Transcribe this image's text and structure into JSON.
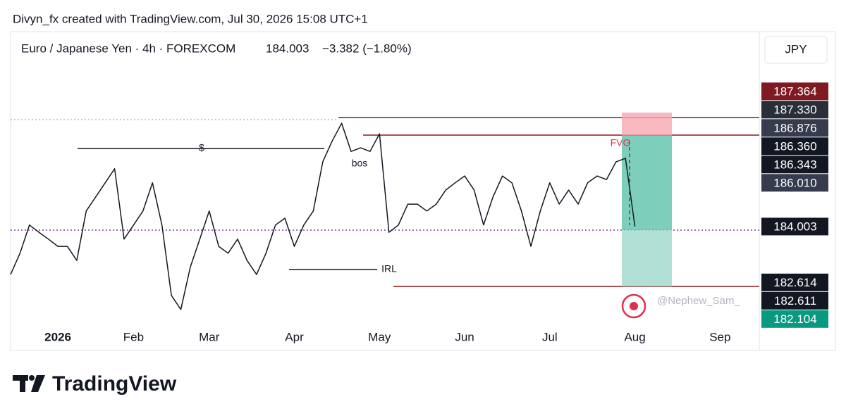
{
  "header": {
    "credit": "Divyn_fx created with TradingView.com, Jul 30, 2026 15:08 UTC+1"
  },
  "chart_data": {
    "type": "line",
    "symbol": "Euro / Japanese Yen · 4h · FOREXCOM",
    "last_price": 184.003,
    "change": "−3.382 (−1.80%)",
    "currency": "JPY",
    "color": "#131722",
    "categories": [
      null,
      null,
      null,
      null,
      null,
      "2026",
      null,
      null,
      null,
      null,
      null,
      null,
      null,
      "Feb",
      null,
      null,
      null,
      null,
      null,
      null,
      null,
      "Mar",
      null,
      null,
      null,
      null,
      null,
      null,
      null,
      null,
      "Apr",
      null,
      null,
      null,
      null,
      null,
      null,
      null,
      null,
      "May",
      null,
      null,
      null,
      null,
      null,
      null,
      null,
      null,
      "Jun",
      null,
      null,
      null,
      null,
      null,
      null,
      null,
      null,
      "Jul",
      null,
      null,
      null,
      null,
      null,
      null,
      null,
      null,
      "Aug",
      null,
      null,
      null,
      null,
      null,
      null,
      null,
      null,
      "Sep",
      null,
      null,
      null,
      null
    ],
    "values": [
      182.81,
      183.34,
      184.04,
      183.86,
      183.69,
      183.51,
      183.51,
      183.16,
      184.39,
      184.74,
      185.09,
      185.44,
      183.69,
      184.04,
      184.39,
      185.09,
      184.04,
      182.29,
      181.94,
      182.99,
      183.69,
      184.39,
      183.51,
      183.34,
      183.69,
      183.16,
      182.81,
      183.34,
      184.04,
      184.21,
      183.51,
      184.04,
      184.39,
      185.61,
      186.13,
      186.57,
      185.87,
      185.96,
      185.87,
      186.31,
      183.86,
      184.04,
      184.56,
      184.56,
      184.39,
      184.56,
      184.91,
      185.09,
      185.26,
      184.91,
      184.04,
      184.74,
      185.26,
      185.09,
      184.39,
      183.51,
      184.39,
      185.09,
      184.56,
      184.91,
      184.56,
      185.09,
      185.26,
      185.17,
      185.61,
      185.7,
      184.003,
      null,
      null,
      null,
      null,
      null,
      null,
      null,
      null,
      null,
      null,
      null,
      null,
      null
    ],
    "ylim": [
      181.5,
      188.9
    ],
    "price_labels": [
      {
        "value": 187.364,
        "label": "187.364",
        "color": "#801922"
      },
      {
        "value": 187.33,
        "label": "187.330",
        "color": "#2a2e39"
      },
      {
        "value": 186.876,
        "label": "186.876",
        "color": "#363c4e"
      },
      {
        "value": 186.36,
        "label": "186.360",
        "color": "#131722"
      },
      {
        "value": 186.343,
        "label": "186.343",
        "color": "#131722"
      },
      {
        "value": 186.01,
        "label": "186.010",
        "color": "#363c4e"
      },
      {
        "value": 184.003,
        "label": "184.003",
        "color": "#131722"
      },
      {
        "value": 182.614,
        "label": "182.614",
        "color": "#131722"
      },
      {
        "value": 182.611,
        "label": "182.611",
        "color": "#131722"
      },
      {
        "value": 182.104,
        "label": "182.104",
        "color": "#089981"
      }
    ],
    "annotations": [
      "$",
      "bos",
      "IRL",
      "FVG"
    ],
    "watermark": "@Nephew_Sam_"
  },
  "footer": {
    "logo": "TradingView"
  }
}
